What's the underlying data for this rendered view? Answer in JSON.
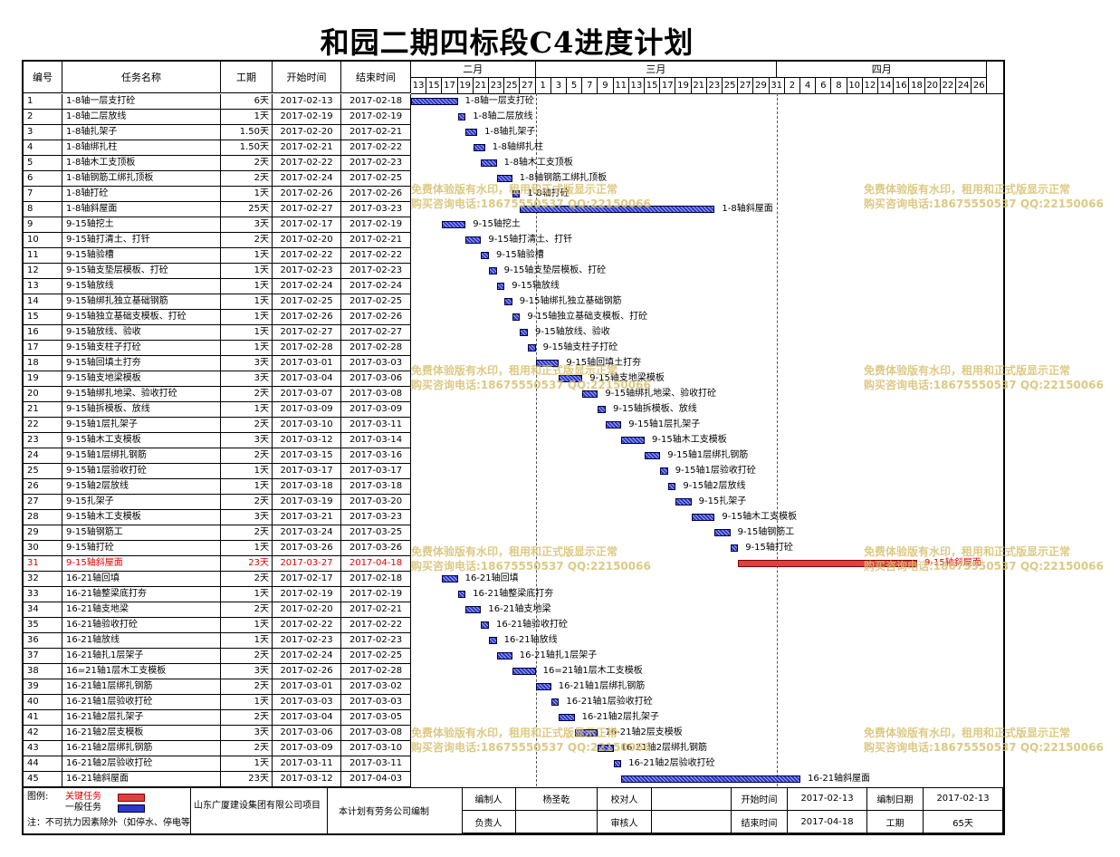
{
  "title": "和园二期四标段C4进度计划",
  "columns": {
    "no": "编号",
    "name": "任务名称",
    "dur": "工期",
    "start": "开始时间",
    "end": "结束时间"
  },
  "months": [
    {
      "label": "二月",
      "day_from": 0,
      "day_to": 16
    },
    {
      "label": "三月",
      "day_from": 16,
      "day_to": 47
    },
    {
      "label": "四月",
      "day_from": 47,
      "day_to": 74
    }
  ],
  "ticks": [
    {
      "label": "13",
      "d": 0
    },
    {
      "label": "15",
      "d": 2
    },
    {
      "label": "17",
      "d": 4
    },
    {
      "label": "19",
      "d": 6
    },
    {
      "label": "21",
      "d": 8
    },
    {
      "label": "23",
      "d": 10
    },
    {
      "label": "25",
      "d": 12
    },
    {
      "label": "27",
      "d": 14
    },
    {
      "label": "1",
      "d": 16
    },
    {
      "label": "3",
      "d": 18
    },
    {
      "label": "5",
      "d": 20
    },
    {
      "label": "7",
      "d": 22
    },
    {
      "label": "9",
      "d": 24
    },
    {
      "label": "11",
      "d": 26
    },
    {
      "label": "13",
      "d": 28
    },
    {
      "label": "15",
      "d": 30
    },
    {
      "label": "17",
      "d": 32
    },
    {
      "label": "19",
      "d": 34
    },
    {
      "label": "21",
      "d": 36
    },
    {
      "label": "23",
      "d": 38
    },
    {
      "label": "25",
      "d": 40
    },
    {
      "label": "27",
      "d": 42
    },
    {
      "label": "29",
      "d": 44
    },
    {
      "label": "31",
      "d": 46
    },
    {
      "label": "2",
      "d": 48
    },
    {
      "label": "4",
      "d": 50
    },
    {
      "label": "6",
      "d": 52
    },
    {
      "label": "8",
      "d": 54
    },
    {
      "label": "10",
      "d": 56
    },
    {
      "label": "12",
      "d": 58
    },
    {
      "label": "14",
      "d": 60
    },
    {
      "label": "16",
      "d": 62
    },
    {
      "label": "18",
      "d": 64
    },
    {
      "label": "20",
      "d": 66
    },
    {
      "label": "22",
      "d": 68
    },
    {
      "label": "24",
      "d": 70
    },
    {
      "label": "26",
      "d": 72
    }
  ],
  "tasks": [
    {
      "no": "1",
      "name": "1-8轴一层支打砼",
      "dur": "6天",
      "start": "2017-02-13",
      "end": "2017-02-18",
      "s": 0,
      "len": 6
    },
    {
      "no": "2",
      "name": "1-8轴二层放线",
      "dur": "1天",
      "start": "2017-02-19",
      "end": "2017-02-19",
      "s": 6,
      "len": 1
    },
    {
      "no": "3",
      "name": "1-8轴扎架子",
      "dur": "1.50天",
      "start": "2017-02-20",
      "end": "2017-02-21",
      "s": 7,
      "len": 1.5
    },
    {
      "no": "4",
      "name": "1-8轴绑扎柱",
      "dur": "1.50天",
      "start": "2017-02-21",
      "end": "2017-02-22",
      "s": 8,
      "len": 1.5
    },
    {
      "no": "5",
      "name": "1-8轴木工支顶板",
      "dur": "2天",
      "start": "2017-02-22",
      "end": "2017-02-23",
      "s": 9,
      "len": 2
    },
    {
      "no": "6",
      "name": "1-8轴钢筋工绑扎顶板",
      "dur": "2天",
      "start": "2017-02-24",
      "end": "2017-02-25",
      "s": 11,
      "len": 2
    },
    {
      "no": "7",
      "name": "1-8轴打砼",
      "dur": "1天",
      "start": "2017-02-26",
      "end": "2017-02-26",
      "s": 13,
      "len": 1
    },
    {
      "no": "8",
      "name": "1-8轴斜屋面",
      "dur": "25天",
      "start": "2017-02-27",
      "end": "2017-03-23",
      "s": 14,
      "len": 25
    },
    {
      "no": "9",
      "name": "9-15轴挖土",
      "dur": "3天",
      "start": "2017-02-17",
      "end": "2017-02-19",
      "s": 4,
      "len": 3
    },
    {
      "no": "10",
      "name": "9-15轴打清土、打钎",
      "dur": "2天",
      "start": "2017-02-20",
      "end": "2017-02-21",
      "s": 7,
      "len": 2
    },
    {
      "no": "11",
      "name": "9-15轴验槽",
      "dur": "1天",
      "start": "2017-02-22",
      "end": "2017-02-22",
      "s": 9,
      "len": 1
    },
    {
      "no": "12",
      "name": "9-15轴支垫层模板、打砼",
      "dur": "1天",
      "start": "2017-02-23",
      "end": "2017-02-23",
      "s": 10,
      "len": 1
    },
    {
      "no": "13",
      "name": "9-15轴放线",
      "dur": "1天",
      "start": "2017-02-24",
      "end": "2017-02-24",
      "s": 11,
      "len": 1
    },
    {
      "no": "14",
      "name": "9-15轴绑扎独立基础钢筋",
      "dur": "1天",
      "start": "2017-02-25",
      "end": "2017-02-25",
      "s": 12,
      "len": 1
    },
    {
      "no": "15",
      "name": "9-15轴独立基础支模板、打砼",
      "dur": "1天",
      "start": "2017-02-26",
      "end": "2017-02-26",
      "s": 13,
      "len": 1
    },
    {
      "no": "16",
      "name": "9-15轴放线、验收",
      "dur": "1天",
      "start": "2017-02-27",
      "end": "2017-02-27",
      "s": 14,
      "len": 1
    },
    {
      "no": "17",
      "name": "9-15轴支柱子打砼",
      "dur": "1天",
      "start": "2017-02-28",
      "end": "2017-02-28",
      "s": 15,
      "len": 1
    },
    {
      "no": "18",
      "name": "9-15轴回填土打夯",
      "dur": "3天",
      "start": "2017-03-01",
      "end": "2017-03-03",
      "s": 16,
      "len": 3
    },
    {
      "no": "19",
      "name": "9-15轴支地梁模板",
      "dur": "3天",
      "start": "2017-03-04",
      "end": "2017-03-06",
      "s": 19,
      "len": 3
    },
    {
      "no": "20",
      "name": "9-15轴绑扎地梁、验收打砼",
      "dur": "2天",
      "start": "2017-03-07",
      "end": "2017-03-08",
      "s": 22,
      "len": 2
    },
    {
      "no": "21",
      "name": "9-15轴拆模板、放线",
      "dur": "1天",
      "start": "2017-03-09",
      "end": "2017-03-09",
      "s": 24,
      "len": 1
    },
    {
      "no": "22",
      "name": "9-15轴1层扎架子",
      "dur": "2天",
      "start": "2017-03-10",
      "end": "2017-03-11",
      "s": 25,
      "len": 2
    },
    {
      "no": "23",
      "name": "9-15轴木工支模板",
      "dur": "3天",
      "start": "2017-03-12",
      "end": "2017-03-14",
      "s": 27,
      "len": 3
    },
    {
      "no": "24",
      "name": "9-15轴1层绑扎钢筋",
      "dur": "2天",
      "start": "2017-03-15",
      "end": "2017-03-16",
      "s": 30,
      "len": 2
    },
    {
      "no": "25",
      "name": "9-15轴1层验收打砼",
      "dur": "1天",
      "start": "2017-03-17",
      "end": "2017-03-17",
      "s": 32,
      "len": 1
    },
    {
      "no": "26",
      "name": "9-15轴2层放线",
      "dur": "1天",
      "start": "2017-03-18",
      "end": "2017-03-18",
      "s": 33,
      "len": 1
    },
    {
      "no": "27",
      "name": "9-15扎架子",
      "dur": "2天",
      "start": "2017-03-19",
      "end": "2017-03-20",
      "s": 34,
      "len": 2
    },
    {
      "no": "28",
      "name": "9-15轴木工支模板",
      "dur": "3天",
      "start": "2017-03-21",
      "end": "2017-03-23",
      "s": 36,
      "len": 3
    },
    {
      "no": "29",
      "name": "9-15轴钢筋工",
      "dur": "2天",
      "start": "2017-03-24",
      "end": "2017-03-25",
      "s": 39,
      "len": 2
    },
    {
      "no": "30",
      "name": "9-15轴打砼",
      "dur": "1天",
      "start": "2017-03-26",
      "end": "2017-03-26",
      "s": 41,
      "len": 1
    },
    {
      "no": "31",
      "name": "9-15轴斜屋面",
      "dur": "23天",
      "start": "2017-03-27",
      "end": "2017-04-18",
      "s": 42,
      "len": 23,
      "critical": true
    },
    {
      "no": "32",
      "name": "16-21轴回填",
      "dur": "2天",
      "start": "2017-02-17",
      "end": "2017-02-18",
      "s": 4,
      "len": 2
    },
    {
      "no": "33",
      "name": "16-21轴整梁底打夯",
      "dur": "1天",
      "start": "2017-02-19",
      "end": "2017-02-19",
      "s": 6,
      "len": 1
    },
    {
      "no": "34",
      "name": "16-21轴支地梁",
      "dur": "2天",
      "start": "2017-02-20",
      "end": "2017-02-21",
      "s": 7,
      "len": 2
    },
    {
      "no": "35",
      "name": "16-21轴验收打砼",
      "dur": "1天",
      "start": "2017-02-22",
      "end": "2017-02-22",
      "s": 9,
      "len": 1
    },
    {
      "no": "36",
      "name": "16-21轴放线",
      "dur": "1天",
      "start": "2017-02-23",
      "end": "2017-02-23",
      "s": 10,
      "len": 1
    },
    {
      "no": "37",
      "name": "16-21轴扎1层架子",
      "dur": "2天",
      "start": "2017-02-24",
      "end": "2017-02-25",
      "s": 11,
      "len": 2
    },
    {
      "no": "38",
      "name": "16=21轴1层木工支模板",
      "dur": "3天",
      "start": "2017-02-26",
      "end": "2017-02-28",
      "s": 13,
      "len": 3
    },
    {
      "no": "39",
      "name": "16-21轴1层绑扎钢筋",
      "dur": "2天",
      "start": "2017-03-01",
      "end": "2017-03-02",
      "s": 16,
      "len": 2
    },
    {
      "no": "40",
      "name": "16-21轴1层验收打砼",
      "dur": "1天",
      "start": "2017-03-03",
      "end": "2017-03-03",
      "s": 18,
      "len": 1
    },
    {
      "no": "41",
      "name": "16-21轴2层扎架子",
      "dur": "2天",
      "start": "2017-03-04",
      "end": "2017-03-05",
      "s": 19,
      "len": 2
    },
    {
      "no": "42",
      "name": "16-21轴2层支模板",
      "dur": "3天",
      "start": "2017-03-06",
      "end": "2017-03-08",
      "s": 21,
      "len": 3
    },
    {
      "no": "43",
      "name": "16-21轴2层绑扎钢筋",
      "dur": "2天",
      "start": "2017-03-09",
      "end": "2017-03-10",
      "s": 24,
      "len": 2
    },
    {
      "no": "44",
      "name": "16-21轴2层验收打砼",
      "dur": "1天",
      "start": "2017-03-11",
      "end": "2017-03-11",
      "s": 26,
      "len": 1
    },
    {
      "no": "45",
      "name": "16-21轴斜屋面",
      "dur": "23天",
      "start": "2017-03-12",
      "end": "2017-04-03",
      "s": 27,
      "len": 23
    }
  ],
  "watermark": {
    "line1": "免费体验版有水印，租用和正式版显示正常",
    "line2": "购买咨询电话:18675550537 QQ:22150066"
  },
  "footer": {
    "legend_label": "图例:",
    "legend_critical": "关键任务",
    "legend_normal": "一般任务",
    "note": "注：不可抗力因素除外（如停水、停电等）",
    "company": "山东广厦建设集团有限公司项目",
    "compiled": "本计划有劳务公司编制",
    "editor_label": "编制人",
    "editor": "杨圣乾",
    "checker_label": "校对人",
    "checker": "",
    "owner_label": "负责人",
    "owner": "",
    "reviewer_label": "审核人",
    "reviewer": "",
    "start_label": "开始时间",
    "start": "2017-02-13",
    "end_label": "结束时间",
    "end": "2017-04-18",
    "date_label": "编制日期",
    "date": "2017-02-13",
    "duration_label": "工期",
    "duration": "65天"
  },
  "colors": {
    "normal_bar": "#2b39c9",
    "critical_bar": "#e04040",
    "critical_text": "#e00000",
    "watermark": "#d8c070"
  }
}
